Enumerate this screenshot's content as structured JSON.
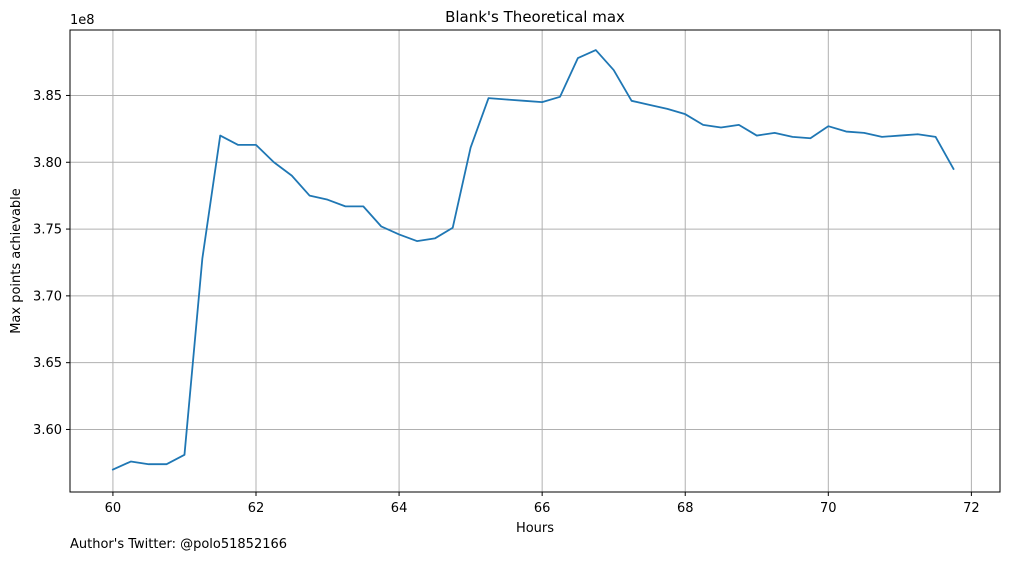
{
  "chart_data": {
    "type": "line",
    "title": "Blank's Theoretical max",
    "xlabel": "Hours",
    "ylabel": "Max points achievable",
    "y_offset_label": "1e8",
    "xlim": [
      59.4,
      72.4
    ],
    "ylim": [
      3.5532,
      3.899
    ],
    "y_multiplier": 100000000,
    "grid": true,
    "line_color": "#1f77b4",
    "x_ticks": [
      60,
      62,
      64,
      66,
      68,
      70,
      72
    ],
    "y_ticks": [
      3.6,
      3.65,
      3.7,
      3.75,
      3.8,
      3.85
    ],
    "x_tick_labels": [
      "60",
      "62",
      "64",
      "66",
      "68",
      "70",
      "72"
    ],
    "y_tick_labels": [
      "3.60",
      "3.65",
      "3.70",
      "3.75",
      "3.80",
      "3.85"
    ],
    "series": [
      {
        "x": [
          60.0,
          60.25,
          60.5,
          60.75,
          61.0,
          61.25,
          61.5,
          61.75,
          62.0,
          62.25,
          62.5,
          62.75,
          63.0,
          63.25,
          63.5,
          63.75,
          64.0,
          64.25,
          64.5,
          64.75,
          65.0,
          65.25,
          65.5,
          65.75,
          66.0,
          66.25,
          66.5,
          66.75,
          67.0,
          67.25,
          67.5,
          67.75,
          68.0,
          68.25,
          68.5,
          68.75,
          69.0,
          69.25,
          69.5,
          69.75,
          70.0,
          70.25,
          70.5,
          70.75,
          71.0,
          71.25,
          71.5,
          71.75
        ],
        "y": [
          3.57,
          3.576,
          3.574,
          3.574,
          3.581,
          3.728,
          3.82,
          3.813,
          3.813,
          3.8,
          3.79,
          3.775,
          3.772,
          3.767,
          3.767,
          3.752,
          3.746,
          3.741,
          3.743,
          3.751,
          3.811,
          3.848,
          3.847,
          3.846,
          3.845,
          3.849,
          3.878,
          3.884,
          3.869,
          3.846,
          3.843,
          3.84,
          3.836,
          3.828,
          3.826,
          3.828,
          3.82,
          3.822,
          3.819,
          3.818,
          3.827,
          3.823,
          3.822,
          3.819,
          3.82,
          3.821,
          3.819,
          3.795
        ]
      }
    ]
  },
  "footer": {
    "author_text": "Author's Twitter: @polo51852166"
  }
}
